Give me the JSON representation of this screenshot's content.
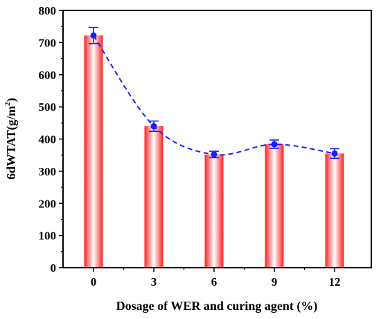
{
  "chart_data": {
    "type": "bar",
    "categories": [
      "0",
      "3",
      "6",
      "9",
      "12"
    ],
    "values": [
      722,
      440,
      352,
      384,
      355
    ],
    "errors": [
      25,
      16,
      10,
      13,
      15
    ],
    "xlabel": "Dosage of WER and curing agent (%)",
    "ylabel_main": "6dWTAT(g/m",
    "ylabel_sup": "2",
    "ylabel_end": ")",
    "ylim": [
      0,
      800
    ],
    "yticks": [
      0,
      100,
      200,
      300,
      400,
      500,
      600,
      700,
      800
    ],
    "grid": false,
    "legend": "none",
    "overlay": "dashed smooth line with points and error bars",
    "colors": {
      "bar_edge": "#ff2020",
      "bar_center": "#ffffff",
      "line": "#1a1aff",
      "point": "#1a1aff",
      "axis": "#000000"
    }
  }
}
